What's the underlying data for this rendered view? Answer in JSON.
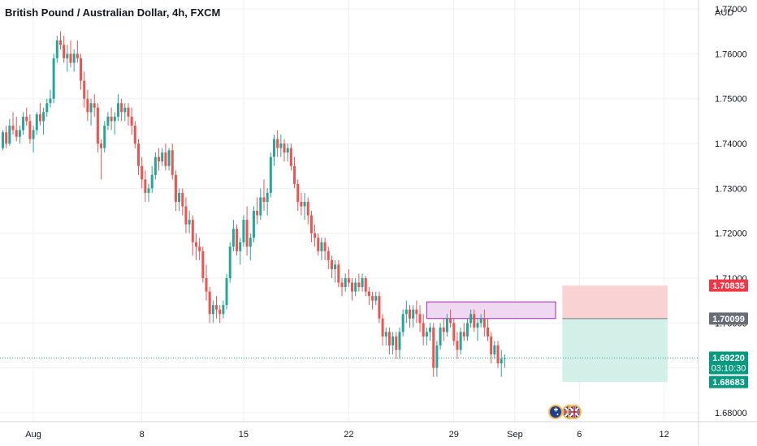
{
  "header": {
    "title": "British Pound / Australian Dollar, 4h, FXCM",
    "currency": "AUD"
  },
  "colors": {
    "up": "#26a69a",
    "down": "#ef5350",
    "grid": "#eef0f3",
    "text": "#131722",
    "stop_zone": "#f9d2d4",
    "target_zone": "#d2efe8",
    "supply_box_fill": "#ecd2f0",
    "supply_box_border": "#9c27b0",
    "price_line": "#26a69a"
  },
  "chart_data": {
    "type": "candlestick",
    "title": "British Pound / Australian Dollar, 4h, FXCM",
    "ylabel": "AUD",
    "ylim": [
      1.678,
      1.772
    ],
    "y_ticks": [
      1.68,
      1.69,
      1.7,
      1.71,
      1.72,
      1.73,
      1.74,
      1.75,
      1.76,
      1.77
    ],
    "y_tick_labels": [
      "1.68000",
      "1.69000",
      "1.70000",
      "1.71000",
      "1.72000",
      "1.73000",
      "1.74000",
      "1.75000",
      "1.76000",
      "1.77000"
    ],
    "x_ticks": [
      {
        "label": "Aug",
        "bar": 9
      },
      {
        "label": "8",
        "bar": 41
      },
      {
        "label": "15",
        "bar": 71
      },
      {
        "label": "22",
        "bar": 102
      },
      {
        "label": "29",
        "bar": 133
      },
      {
        "label": "Sep",
        "bar": 151
      },
      {
        "label": "6",
        "bar": 170
      },
      {
        "label": "12",
        "bar": 195
      }
    ],
    "candles": [
      [
        1.739,
        1.743,
        1.7385,
        1.7425
      ],
      [
        1.7425,
        1.744,
        1.739,
        1.74
      ],
      [
        1.74,
        1.7455,
        1.7395,
        1.744
      ],
      [
        1.744,
        1.747,
        1.742,
        1.743
      ],
      [
        1.743,
        1.746,
        1.7405,
        1.7415
      ],
      [
        1.7415,
        1.744,
        1.74,
        1.743
      ],
      [
        1.743,
        1.747,
        1.742,
        1.746
      ],
      [
        1.746,
        1.748,
        1.744,
        1.745
      ],
      [
        1.745,
        1.7465,
        1.74,
        1.741
      ],
      [
        1.741,
        1.744,
        1.738,
        1.743
      ],
      [
        1.743,
        1.747,
        1.742,
        1.7465
      ],
      [
        1.7465,
        1.749,
        1.744,
        1.745
      ],
      [
        1.745,
        1.748,
        1.742,
        1.747
      ],
      [
        1.747,
        1.75,
        1.746,
        1.749
      ],
      [
        1.749,
        1.752,
        1.748,
        1.75
      ],
      [
        1.75,
        1.76,
        1.749,
        1.759
      ],
      [
        1.759,
        1.764,
        1.758,
        1.763
      ],
      [
        1.763,
        1.765,
        1.761,
        1.762
      ],
      [
        1.762,
        1.764,
        1.758,
        1.759
      ],
      [
        1.759,
        1.762,
        1.756,
        1.76
      ],
      [
        1.76,
        1.763,
        1.757,
        1.758
      ],
      [
        1.758,
        1.761,
        1.756,
        1.76
      ],
      [
        1.76,
        1.763,
        1.758,
        1.759
      ],
      [
        1.759,
        1.76,
        1.752,
        1.754
      ],
      [
        1.754,
        1.756,
        1.748,
        1.75
      ],
      [
        1.75,
        1.752,
        1.745,
        1.747
      ],
      [
        1.747,
        1.75,
        1.744,
        1.749
      ],
      [
        1.749,
        1.751,
        1.746,
        1.748
      ],
      [
        1.748,
        1.749,
        1.738,
        1.74
      ],
      [
        1.74,
        1.741,
        1.732,
        1.739
      ],
      [
        1.739,
        1.745,
        1.738,
        1.744
      ],
      [
        1.744,
        1.747,
        1.743,
        1.746
      ],
      [
        1.746,
        1.748,
        1.743,
        1.745
      ],
      [
        1.745,
        1.747,
        1.742,
        1.746
      ],
      [
        1.746,
        1.751,
        1.745,
        1.749
      ],
      [
        1.749,
        1.75,
        1.745,
        1.747
      ],
      [
        1.747,
        1.749,
        1.745,
        1.748
      ],
      [
        1.748,
        1.749,
        1.744,
        1.746
      ],
      [
        1.746,
        1.748,
        1.742,
        1.744
      ],
      [
        1.744,
        1.745,
        1.739,
        1.74
      ],
      [
        1.74,
        1.741,
        1.733,
        1.735
      ],
      [
        1.735,
        1.737,
        1.73,
        1.732
      ],
      [
        1.732,
        1.734,
        1.727,
        1.729
      ],
      [
        1.729,
        1.731,
        1.727,
        1.73
      ],
      [
        1.73,
        1.735,
        1.729,
        1.733
      ],
      [
        1.733,
        1.738,
        1.732,
        1.737
      ],
      [
        1.737,
        1.739,
        1.734,
        1.736
      ],
      [
        1.736,
        1.739,
        1.735,
        1.738
      ],
      [
        1.738,
        1.74,
        1.734,
        1.735
      ],
      [
        1.735,
        1.739,
        1.734,
        1.7385
      ],
      [
        1.7385,
        1.74,
        1.732,
        1.733
      ],
      [
        1.733,
        1.734,
        1.725,
        1.727
      ],
      [
        1.727,
        1.73,
        1.725,
        1.729
      ],
      [
        1.729,
        1.73,
        1.724,
        1.726
      ],
      [
        1.726,
        1.728,
        1.72,
        1.722
      ],
      [
        1.722,
        1.725,
        1.72,
        1.723
      ],
      [
        1.723,
        1.724,
        1.715,
        1.718
      ],
      [
        1.718,
        1.72,
        1.714,
        1.717
      ],
      [
        1.717,
        1.719,
        1.714,
        1.716
      ],
      [
        1.716,
        1.717,
        1.709,
        1.71
      ],
      [
        1.71,
        1.713,
        1.705,
        1.707
      ],
      [
        1.707,
        1.708,
        1.7,
        1.702
      ],
      [
        1.702,
        1.705,
        1.7,
        1.704
      ],
      [
        1.704,
        1.706,
        1.701,
        1.703
      ],
      [
        1.703,
        1.704,
        1.7,
        1.702
      ],
      [
        1.702,
        1.705,
        1.701,
        1.704
      ],
      [
        1.704,
        1.711,
        1.703,
        1.71
      ],
      [
        1.71,
        1.718,
        1.709,
        1.717
      ],
      [
        1.717,
        1.723,
        1.716,
        1.721
      ],
      [
        1.721,
        1.722,
        1.715,
        1.716
      ],
      [
        1.716,
        1.719,
        1.713,
        1.718
      ],
      [
        1.718,
        1.724,
        1.717,
        1.723
      ],
      [
        1.723,
        1.726,
        1.715,
        1.717
      ],
      [
        1.717,
        1.72,
        1.714,
        1.719
      ],
      [
        1.719,
        1.726,
        1.718,
        1.725
      ],
      [
        1.725,
        1.728,
        1.722,
        1.724
      ],
      [
        1.724,
        1.73,
        1.723,
        1.728
      ],
      [
        1.728,
        1.732,
        1.725,
        1.727
      ],
      [
        1.727,
        1.73,
        1.724,
        1.729
      ],
      [
        1.729,
        1.738,
        1.728,
        1.737
      ],
      [
        1.737,
        1.742,
        1.735,
        1.741
      ],
      [
        1.741,
        1.743,
        1.737,
        1.739
      ],
      [
        1.739,
        1.742,
        1.737,
        1.74
      ],
      [
        1.74,
        1.741,
        1.736,
        1.738
      ],
      [
        1.738,
        1.74,
        1.736,
        1.739
      ],
      [
        1.739,
        1.74,
        1.734,
        1.735
      ],
      [
        1.735,
        1.737,
        1.73,
        1.731
      ],
      [
        1.731,
        1.732,
        1.725,
        1.727
      ],
      [
        1.727,
        1.729,
        1.724,
        1.726
      ],
      [
        1.726,
        1.729,
        1.723,
        1.727
      ],
      [
        1.727,
        1.728,
        1.722,
        1.724
      ],
      [
        1.724,
        1.725,
        1.718,
        1.72
      ],
      [
        1.72,
        1.722,
        1.717,
        1.719
      ],
      [
        1.719,
        1.72,
        1.715,
        1.716
      ],
      [
        1.716,
        1.719,
        1.714,
        1.718
      ],
      [
        1.718,
        1.719,
        1.714,
        1.716
      ],
      [
        1.716,
        1.717,
        1.712,
        1.714
      ],
      [
        1.714,
        1.715,
        1.71,
        1.712
      ],
      [
        1.712,
        1.714,
        1.709,
        1.713
      ],
      [
        1.713,
        1.714,
        1.708,
        1.709
      ],
      [
        1.709,
        1.71,
        1.706,
        1.708
      ],
      [
        1.708,
        1.711,
        1.707,
        1.71
      ],
      [
        1.71,
        1.712,
        1.708,
        1.709
      ],
      [
        1.709,
        1.71,
        1.705,
        1.707
      ],
      [
        1.707,
        1.71,
        1.706,
        1.709
      ],
      [
        1.709,
        1.711,
        1.707,
        1.708
      ],
      [
        1.708,
        1.711,
        1.707,
        1.71
      ],
      [
        1.71,
        1.7105,
        1.706,
        1.707
      ],
      [
        1.707,
        1.708,
        1.704,
        1.706
      ],
      [
        1.706,
        1.707,
        1.703,
        1.705
      ],
      [
        1.705,
        1.707,
        1.704,
        1.706
      ],
      [
        1.706,
        1.707,
        1.7,
        1.701
      ],
      [
        1.701,
        1.702,
        1.695,
        1.697
      ],
      [
        1.697,
        1.699,
        1.695,
        1.698
      ],
      [
        1.698,
        1.699,
        1.693,
        1.695
      ],
      [
        1.695,
        1.698,
        1.693,
        1.697
      ],
      [
        1.697,
        1.698,
        1.692,
        1.694
      ],
      [
        1.694,
        1.699,
        1.692,
        1.698
      ],
      [
        1.698,
        1.703,
        1.697,
        1.702
      ],
      [
        1.702,
        1.705,
        1.7,
        1.703
      ],
      [
        1.703,
        1.704,
        1.699,
        1.701
      ],
      [
        1.701,
        1.704,
        1.699,
        1.703
      ],
      [
        1.703,
        1.705,
        1.7,
        1.702
      ],
      [
        1.702,
        1.704,
        1.698,
        1.7
      ],
      [
        1.7,
        1.702,
        1.695,
        1.697
      ],
      [
        1.697,
        1.699,
        1.695,
        1.698
      ],
      [
        1.698,
        1.7,
        1.696,
        1.699
      ],
      [
        1.699,
        1.7,
        1.688,
        1.69
      ],
      [
        1.69,
        1.696,
        1.688,
        1.695
      ],
      [
        1.695,
        1.7,
        1.694,
        1.699
      ],
      [
        1.699,
        1.701,
        1.696,
        1.698
      ],
      [
        1.698,
        1.702,
        1.697,
        1.701
      ],
      [
        1.701,
        1.703,
        1.699,
        1.7
      ],
      [
        1.7,
        1.701,
        1.695,
        1.696
      ],
      [
        1.696,
        1.698,
        1.692,
        1.694
      ],
      [
        1.694,
        1.699,
        1.693,
        1.698
      ],
      [
        1.698,
        1.7,
        1.696,
        1.697
      ],
      [
        1.697,
        1.701,
        1.696,
        1.7
      ],
      [
        1.7,
        1.703,
        1.699,
        1.702
      ],
      [
        1.702,
        1.703,
        1.698,
        1.699
      ],
      [
        1.699,
        1.701,
        1.696,
        1.7
      ],
      [
        1.7,
        1.702,
        1.699,
        1.701
      ],
      [
        1.701,
        1.703,
        1.697,
        1.699
      ],
      [
        1.699,
        1.701,
        1.696,
        1.697
      ],
      [
        1.697,
        1.698,
        1.691,
        1.693
      ],
      [
        1.693,
        1.696,
        1.692,
        1.695
      ],
      [
        1.695,
        1.696,
        1.69,
        1.691
      ],
      [
        1.691,
        1.694,
        1.688,
        1.692
      ],
      [
        1.692,
        1.693,
        1.69,
        1.6922
      ]
    ],
    "annotations": {
      "supply_zone": {
        "bar_start": 125,
        "bar_end": 163,
        "top": 1.7047,
        "bottom": 1.701
      },
      "position": {
        "bar_start": 165,
        "bar_end": 196,
        "stop": 1.70835,
        "entry": 1.70099,
        "target": 1.68683
      }
    },
    "last_price": 1.6922,
    "price_labels": [
      {
        "name": "stop",
        "text": "1.70835",
        "value": 1.70835,
        "color": "#f23645"
      },
      {
        "name": "entry",
        "text": "1.70099",
        "value": 1.70099,
        "color": "#6a6d78"
      },
      {
        "name": "last",
        "text": "1.69220",
        "value": 1.6922,
        "color": "#089981",
        "countdown": "03:10:30"
      },
      {
        "name": "target",
        "text": "1.68683",
        "value": 1.68683,
        "color": "#089981"
      }
    ]
  }
}
